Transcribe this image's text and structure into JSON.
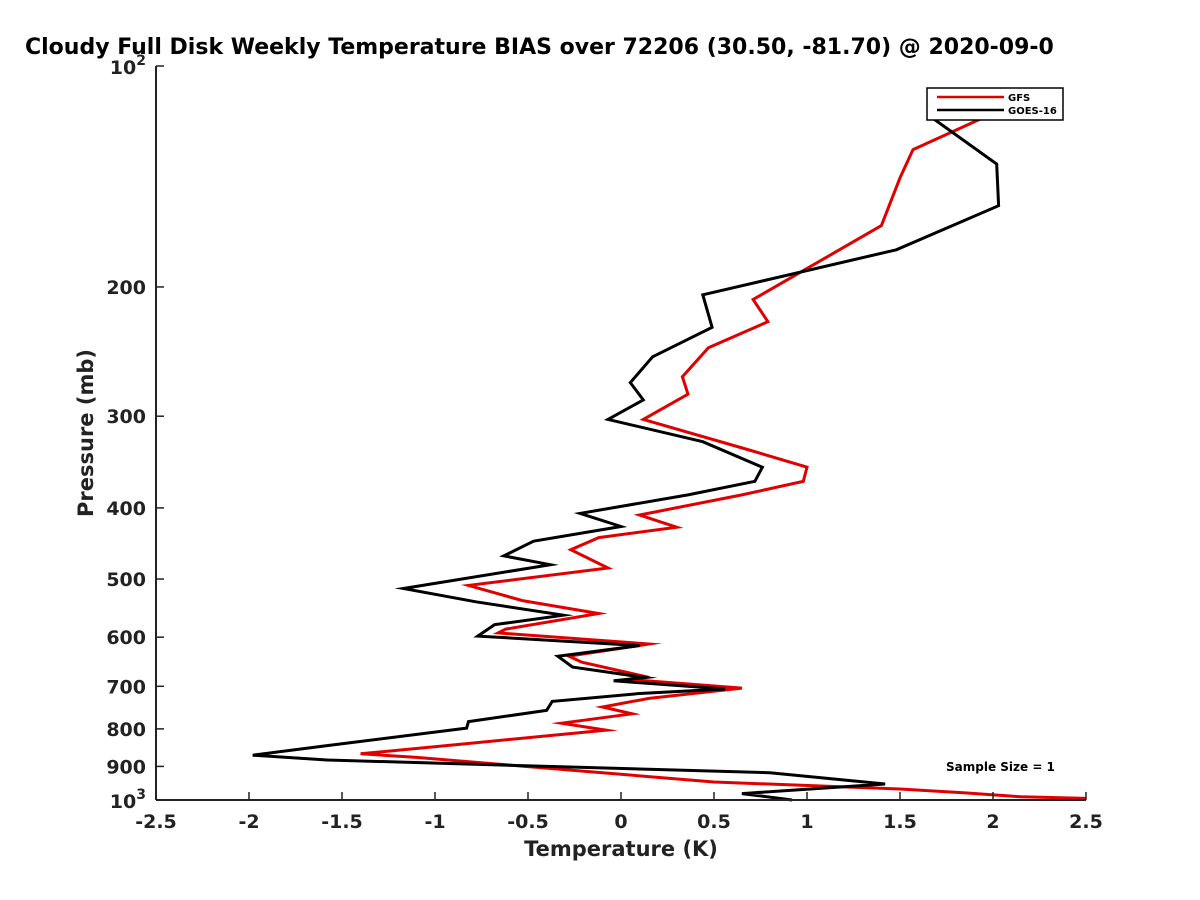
{
  "chart_data": {
    "type": "line",
    "title": "Cloudy Full Disk Weekly Temperature BIAS over 72206 (30.50, -81.70) @ 2020-09-0",
    "xlabel": "Temperature (K)",
    "ylabel": "Pressure (mb)",
    "xlim": [
      -2.5,
      2.5
    ],
    "ylim": [
      100,
      1000
    ],
    "y_scale": "log",
    "y_reversed": true,
    "grid": false,
    "legend_position": "top-right",
    "x_ticks": [
      "-2.5",
      "-2",
      "-1.5",
      "-1",
      "-0.5",
      "0",
      "0.5",
      "1",
      "1.5",
      "2",
      "2.5"
    ],
    "y_ticks": [
      {
        "value": 100,
        "base": "10",
        "exp": "2"
      },
      {
        "value": 200,
        "label": "200"
      },
      {
        "value": 300,
        "label": "300"
      },
      {
        "value": 400,
        "label": "400"
      },
      {
        "value": 500,
        "label": "500"
      },
      {
        "value": 600,
        "label": "600"
      },
      {
        "value": 700,
        "label": "700"
      },
      {
        "value": 800,
        "label": "800"
      },
      {
        "value": 900,
        "label": "900"
      },
      {
        "value": 1000,
        "base": "10",
        "exp": "3"
      }
    ],
    "annotation": "Sample Size = 1",
    "series": [
      {
        "name": "GFS",
        "color": "#e00000",
        "points": [
          [
            2.0,
            116
          ],
          [
            1.57,
            130
          ],
          [
            1.5,
            142
          ],
          [
            1.4,
            165
          ],
          [
            0.71,
            208
          ],
          [
            0.79,
            223
          ],
          [
            0.47,
            242
          ],
          [
            0.33,
            265
          ],
          [
            0.36,
            280
          ],
          [
            0.12,
            303
          ],
          [
            0.68,
            333
          ],
          [
            1.0,
            352
          ],
          [
            0.98,
            368
          ],
          [
            0.65,
            384
          ],
          [
            0.1,
            409
          ],
          [
            0.3,
            425
          ],
          [
            -0.12,
            439
          ],
          [
            -0.27,
            456
          ],
          [
            -0.07,
            483
          ],
          [
            -0.82,
            510
          ],
          [
            -0.53,
            535
          ],
          [
            -0.12,
            557
          ],
          [
            -0.62,
            585
          ],
          [
            -0.66,
            592
          ],
          [
            0.15,
            613
          ],
          [
            -0.28,
            637
          ],
          [
            -0.21,
            649
          ],
          [
            0.12,
            678
          ],
          [
            0.04,
            685
          ],
          [
            0.65,
            704
          ],
          [
            0.15,
            727
          ],
          [
            -0.1,
            747
          ],
          [
            0.06,
            763
          ],
          [
            -0.32,
            786
          ],
          [
            -0.08,
            803
          ],
          [
            -0.87,
            840
          ],
          [
            -1.4,
            865
          ],
          [
            -1.1,
            875
          ],
          [
            0.5,
            945
          ],
          [
            1.5,
            966
          ],
          [
            1.85,
            978
          ],
          [
            2.15,
            990
          ],
          [
            2.5,
            995
          ]
        ]
      },
      {
        "name": "GOES-16",
        "color": "#000000",
        "points": [
          [
            1.68,
            118
          ],
          [
            2.02,
            136
          ],
          [
            2.03,
            155
          ],
          [
            1.48,
            178
          ],
          [
            0.44,
            205
          ],
          [
            0.49,
            227
          ],
          [
            0.17,
            249
          ],
          [
            0.05,
            270
          ],
          [
            0.12,
            285
          ],
          [
            -0.07,
            303
          ],
          [
            0.44,
            325
          ],
          [
            0.76,
            352
          ],
          [
            0.72,
            368
          ],
          [
            0.36,
            384
          ],
          [
            -0.22,
            407
          ],
          [
            0.0,
            424
          ],
          [
            -0.47,
            444
          ],
          [
            -0.63,
            465
          ],
          [
            -0.38,
            478
          ],
          [
            -1.17,
            515
          ],
          [
            -0.78,
            537
          ],
          [
            -0.31,
            560
          ],
          [
            -0.68,
            577
          ],
          [
            -0.77,
            598
          ],
          [
            0.1,
            616
          ],
          [
            -0.34,
            637
          ],
          [
            -0.26,
            659
          ],
          [
            0.13,
            681
          ],
          [
            -0.04,
            688
          ],
          [
            0.56,
            706
          ],
          [
            0.1,
            716
          ],
          [
            -0.37,
            734
          ],
          [
            -0.4,
            755
          ],
          [
            -0.82,
            782
          ],
          [
            -0.83,
            798
          ],
          [
            -1.58,
            843
          ],
          [
            -1.98,
            869
          ],
          [
            -1.58,
            882
          ],
          [
            0.8,
            918
          ],
          [
            1.42,
            951
          ],
          [
            0.65,
            980
          ],
          [
            0.92,
            1000
          ]
        ]
      }
    ]
  }
}
